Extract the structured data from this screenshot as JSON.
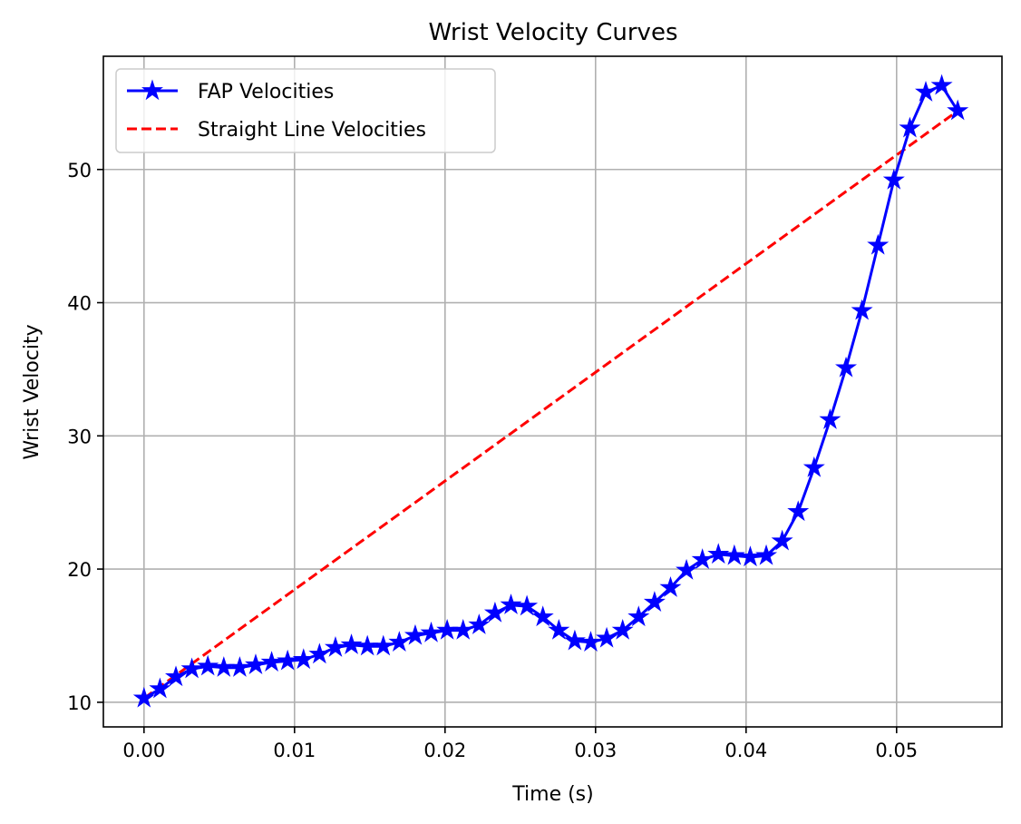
{
  "chart_data": {
    "type": "line",
    "title": "Wrist Velocity Curves",
    "xlabel": "Time (s)",
    "ylabel": "Wrist Velocity",
    "xlim": [
      -0.0027,
      0.057
    ],
    "ylim": [
      8.15,
      58.5
    ],
    "xticks": [
      0.0,
      0.01,
      0.02,
      0.03,
      0.04,
      0.05
    ],
    "xtick_labels": [
      "0.00",
      "0.01",
      "0.02",
      "0.03",
      "0.04",
      "0.05"
    ],
    "yticks": [
      10,
      20,
      30,
      40,
      50
    ],
    "ytick_labels": [
      "10",
      "20",
      "30",
      "40",
      "50"
    ],
    "grid": true,
    "legend_position": "upper-left",
    "series": [
      {
        "name": "FAP Velocities",
        "style": "solid",
        "marker": "star",
        "color": "#0000ff",
        "x": [
          0.0,
          0.00106,
          0.00212,
          0.00318,
          0.00424,
          0.0053,
          0.00636,
          0.00742,
          0.00848,
          0.00954,
          0.0106,
          0.01166,
          0.01272,
          0.01378,
          0.01484,
          0.0159,
          0.01696,
          0.01802,
          0.01908,
          0.02014,
          0.0212,
          0.02226,
          0.02332,
          0.02438,
          0.02544,
          0.0265,
          0.02756,
          0.02862,
          0.02968,
          0.03074,
          0.0318,
          0.03286,
          0.03392,
          0.03498,
          0.03604,
          0.0371,
          0.03816,
          0.03922,
          0.04028,
          0.04134,
          0.0424,
          0.04346,
          0.04452,
          0.04558,
          0.04664,
          0.0477,
          0.04876,
          0.04982,
          0.05088,
          0.05194,
          0.053,
          0.05406
        ],
        "y": [
          10.3,
          11.0,
          11.9,
          12.5,
          12.7,
          12.6,
          12.6,
          12.8,
          13.0,
          13.1,
          13.2,
          13.6,
          14.1,
          14.3,
          14.2,
          14.2,
          14.5,
          15.0,
          15.2,
          15.4,
          15.4,
          15.8,
          16.7,
          17.3,
          17.2,
          16.4,
          15.4,
          14.6,
          14.5,
          14.8,
          15.4,
          16.4,
          17.5,
          18.6,
          19.9,
          20.7,
          21.1,
          21.0,
          20.9,
          21.0,
          22.1,
          24.3,
          27.6,
          31.2,
          35.1,
          39.4,
          44.3,
          49.2,
          53.1,
          55.8,
          56.3,
          54.4
        ]
      },
      {
        "name": "Straight Line Velocities",
        "style": "dashed",
        "marker": "none",
        "color": "#ff0000",
        "x": [
          0.0,
          0.05406
        ],
        "y": [
          10.3,
          54.4
        ]
      }
    ]
  }
}
